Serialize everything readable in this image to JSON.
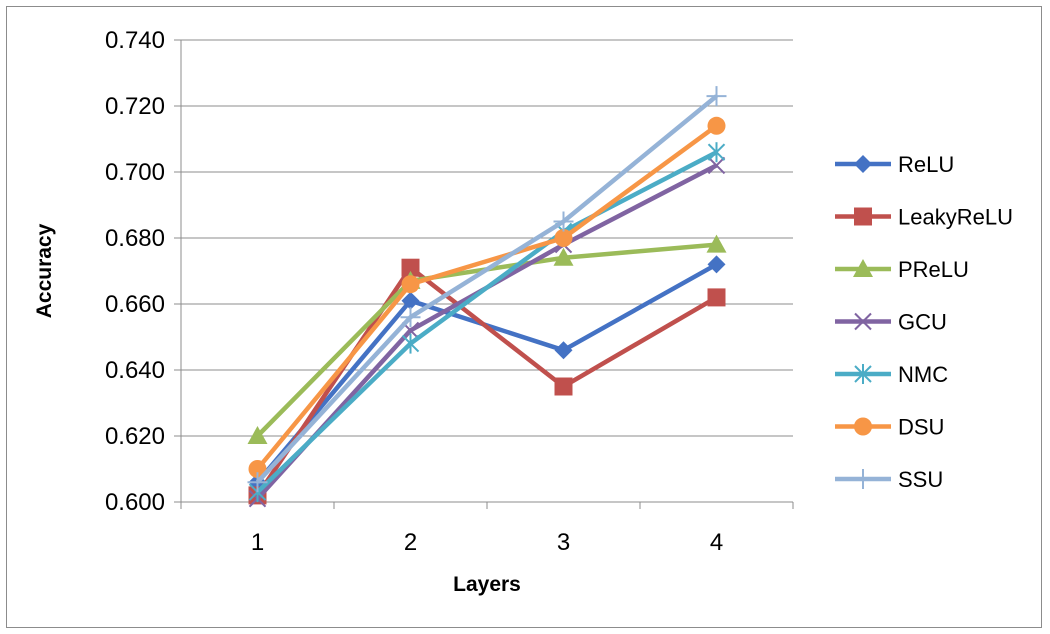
{
  "chart_data": {
    "type": "line",
    "title": "",
    "xlabel": "Layers",
    "ylabel": "Accuracy",
    "categories": [
      "1",
      "2",
      "3",
      "4"
    ],
    "ylim": [
      0.6,
      0.74
    ],
    "y_ticks": [
      "0.600",
      "0.620",
      "0.640",
      "0.660",
      "0.680",
      "0.700",
      "0.720",
      "0.740"
    ],
    "grid": "horizontal",
    "legend_position": "right",
    "series": [
      {
        "name": "ReLU",
        "values": [
          0.606,
          0.661,
          0.646,
          0.672
        ],
        "color": "#4472C4",
        "marker": "diamond"
      },
      {
        "name": "LeakyReLU",
        "values": [
          0.602,
          0.671,
          0.635,
          0.662
        ],
        "color": "#C0504D",
        "marker": "square"
      },
      {
        "name": "PReLU",
        "values": [
          0.62,
          0.667,
          0.674,
          0.678
        ],
        "color": "#9BBB59",
        "marker": "triangle"
      },
      {
        "name": "GCU",
        "values": [
          0.601,
          0.652,
          0.678,
          0.702
        ],
        "color": "#8064A2",
        "marker": "x"
      },
      {
        "name": "NMC",
        "values": [
          0.603,
          0.648,
          0.682,
          0.706
        ],
        "color": "#4BACC6",
        "marker": "asterisk"
      },
      {
        "name": "DSU",
        "values": [
          0.61,
          0.666,
          0.68,
          0.714
        ],
        "color": "#F79646",
        "marker": "circle"
      },
      {
        "name": "SSU",
        "values": [
          0.606,
          0.656,
          0.685,
          0.723
        ],
        "color": "#95B3D7",
        "marker": "plus"
      }
    ]
  }
}
